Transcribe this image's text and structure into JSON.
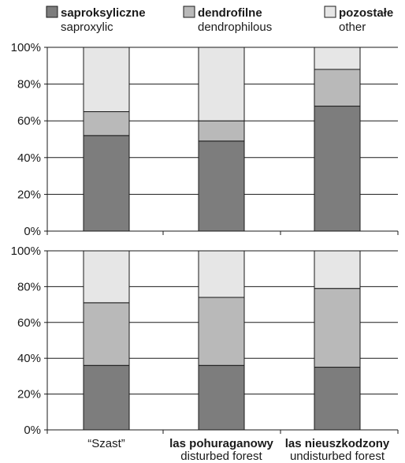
{
  "colors": {
    "saproxylic": "#7d7d7d",
    "dendrophilous": "#b9b9b9",
    "other": "#e6e6e6",
    "outline": "#1a1a1a"
  },
  "legend": [
    {
      "label": "saproksyliczne",
      "sublabel": "saproxylic",
      "color_key": "saproxylic"
    },
    {
      "label": "dendrofilne",
      "sublabel": "dendrophilous",
      "color_key": "dendrophilous"
    },
    {
      "label": "pozostałe",
      "sublabel": "other",
      "color_key": "other"
    }
  ],
  "categories": [
    {
      "label": "“Szast”",
      "sublabel": "",
      "bold": false
    },
    {
      "label": "las pohuraganowy",
      "sublabel": "disturbed forest",
      "bold": true
    },
    {
      "label": "las nieuszkodzony",
      "sublabel": "undisturbed forest",
      "bold": true
    }
  ],
  "chart_data": [
    {
      "type": "bar",
      "stacked": true,
      "percent": true,
      "categories": [
        "“Szast”",
        "las pohuraganowy",
        "las nieuszkodzony"
      ],
      "series": [
        {
          "name": "saproksyliczne",
          "values": [
            52,
            49,
            68
          ]
        },
        {
          "name": "dendrofilne",
          "values": [
            13,
            11,
            20
          ]
        },
        {
          "name": "pozostałe",
          "values": [
            35,
            40,
            12
          ]
        }
      ],
      "ylim": [
        0,
        100
      ],
      "yticks": [
        "0%",
        "20%",
        "40%",
        "60%",
        "80%",
        "100%"
      ],
      "grid": true
    },
    {
      "type": "bar",
      "stacked": true,
      "percent": true,
      "categories": [
        "“Szast”",
        "las pohuraganowy",
        "las nieuszkodzony"
      ],
      "series": [
        {
          "name": "saproksyliczne",
          "values": [
            36,
            36,
            35
          ]
        },
        {
          "name": "dendrofilne",
          "values": [
            35,
            38,
            44
          ]
        },
        {
          "name": "pozostałe",
          "values": [
            29,
            26,
            21
          ]
        }
      ],
      "ylim": [
        0,
        100
      ],
      "yticks": [
        "0%",
        "20%",
        "40%",
        "60%",
        "80%",
        "100%"
      ],
      "grid": true
    }
  ]
}
